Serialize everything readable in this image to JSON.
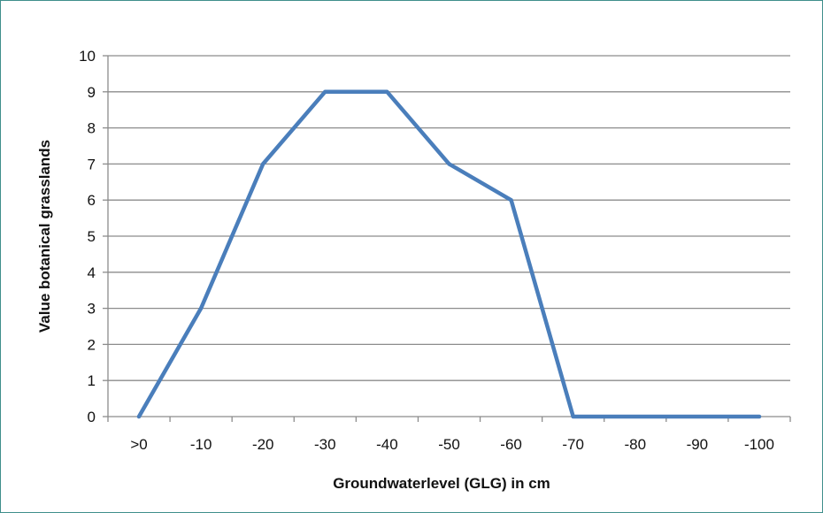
{
  "chart_data": {
    "type": "line",
    "categories": [
      ">0",
      "-10",
      "-20",
      "-30",
      "-40",
      "-50",
      "-60",
      "-70",
      "-80",
      "-90",
      "-100"
    ],
    "series": [
      {
        "values": [
          0,
          3,
          7,
          9,
          9,
          7,
          6,
          0,
          0,
          0,
          0
        ]
      }
    ],
    "xlabel": "Groundwaterlevel (GLG) in cm",
    "ylabel": "Value botanical grasslands",
    "ylim": [
      0,
      10
    ],
    "yticks": [
      0,
      1,
      2,
      3,
      4,
      5,
      6,
      7,
      8,
      9,
      10
    ],
    "grid": true,
    "line_color": "#4a7ebb",
    "grid_color": "#8c8c8c"
  }
}
